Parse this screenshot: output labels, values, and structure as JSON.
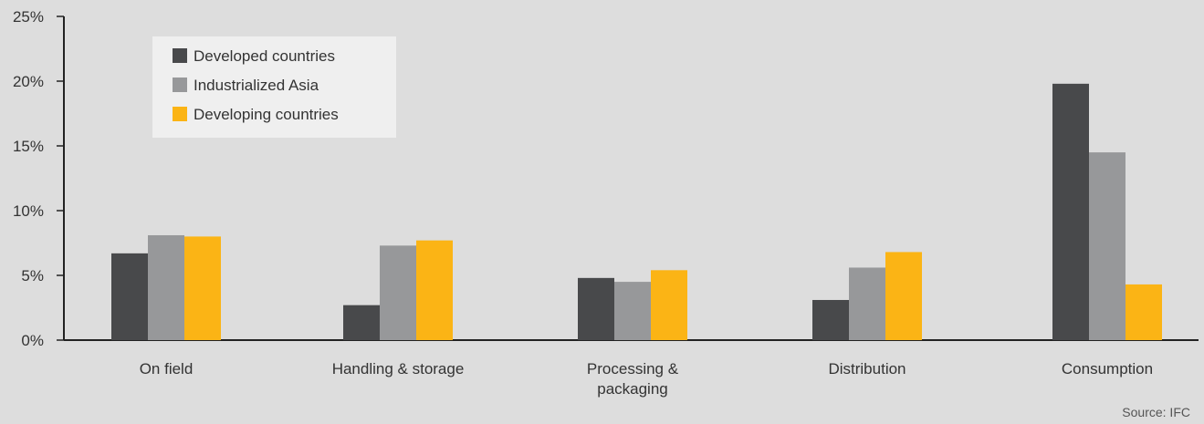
{
  "chart_data": {
    "type": "bar",
    "categories": [
      "On field",
      "Handling & storage",
      "Processing &\npackaging",
      "Distribution",
      "Consumption"
    ],
    "series": [
      {
        "name": "Developed countries",
        "color": "#48494b",
        "values": [
          6.7,
          2.7,
          4.8,
          3.1,
          19.8
        ]
      },
      {
        "name": "Industrialized Asia",
        "color": "#97989a",
        "values": [
          8.1,
          7.3,
          4.5,
          5.6,
          14.5
        ]
      },
      {
        "name": "Developing countries",
        "color": "#fbb415",
        "values": [
          8.0,
          7.7,
          5.4,
          6.8,
          4.3
        ]
      }
    ],
    "ylim": [
      0,
      25
    ],
    "yticks": [
      0,
      5,
      10,
      15,
      20,
      25
    ],
    "ytick_labels": [
      "0%",
      "5%",
      "10%",
      "15%",
      "20%",
      "25%"
    ],
    "legend_position": "top-left",
    "grid": false,
    "source": "Source: IFC"
  },
  "colors": {
    "background": "#dddddd",
    "legend_background": "#efefef",
    "axis": "#222222"
  }
}
